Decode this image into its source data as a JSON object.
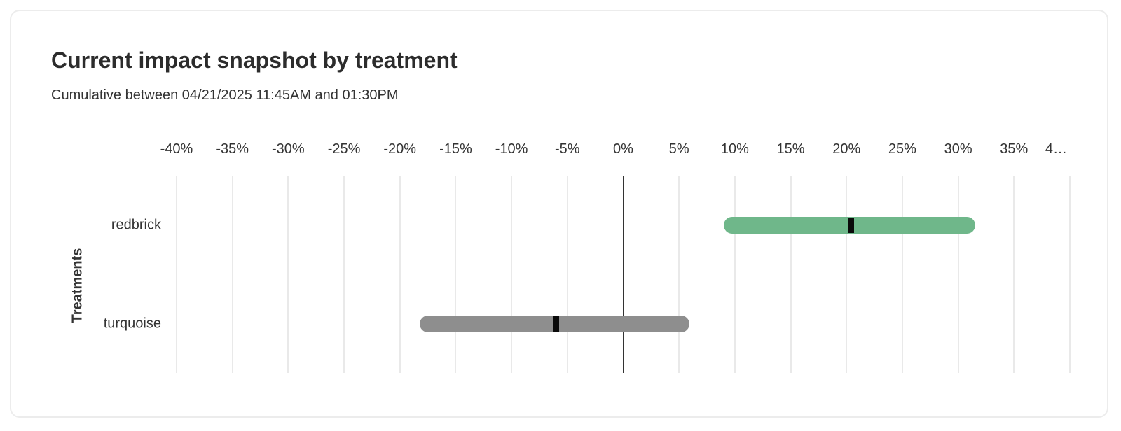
{
  "card": {
    "title": "Current impact snapshot by treatment",
    "subtitle": "Cumulative between 04/21/2025 11:45AM and 01:30PM"
  },
  "chart_data": {
    "type": "bar",
    "subtype": "horizontal-range-bars-with-point-estimate",
    "title": "Current impact snapshot by treatment",
    "subtitle": "Cumulative between 04/21/2025 11:45AM and 01:30PM",
    "xlabel": "",
    "ylabel": "Treatments",
    "units": "%",
    "xlim": [
      -40,
      40
    ],
    "x_tick_step": 5,
    "x_tick_labels": [
      "-40%",
      "-35%",
      "-30%",
      "-25%",
      "-20%",
      "-15%",
      "-10%",
      "-5%",
      "0%",
      "5%",
      "10%",
      "15%",
      "20%",
      "25%",
      "30%",
      "35%",
      "4…"
    ],
    "grid": true,
    "zero_line": true,
    "legend": "none",
    "categories": [
      "redbrick",
      "turquoise"
    ],
    "series": [
      {
        "name": "redbrick",
        "low": 9.0,
        "high": 31.5,
        "point": 20.4,
        "color": "#6fb78a"
      },
      {
        "name": "turquoise",
        "low": -18.2,
        "high": 5.9,
        "point": -6.0,
        "color": "#8e8e8e"
      }
    ],
    "colors": {
      "grid_line": "#e9e9e9",
      "zero_line": "#333333",
      "point_marker": "#0a0a0a",
      "text": "#333333",
      "title_text": "#2c2c2c",
      "card_border": "#ececec",
      "background": "#ffffff"
    }
  }
}
